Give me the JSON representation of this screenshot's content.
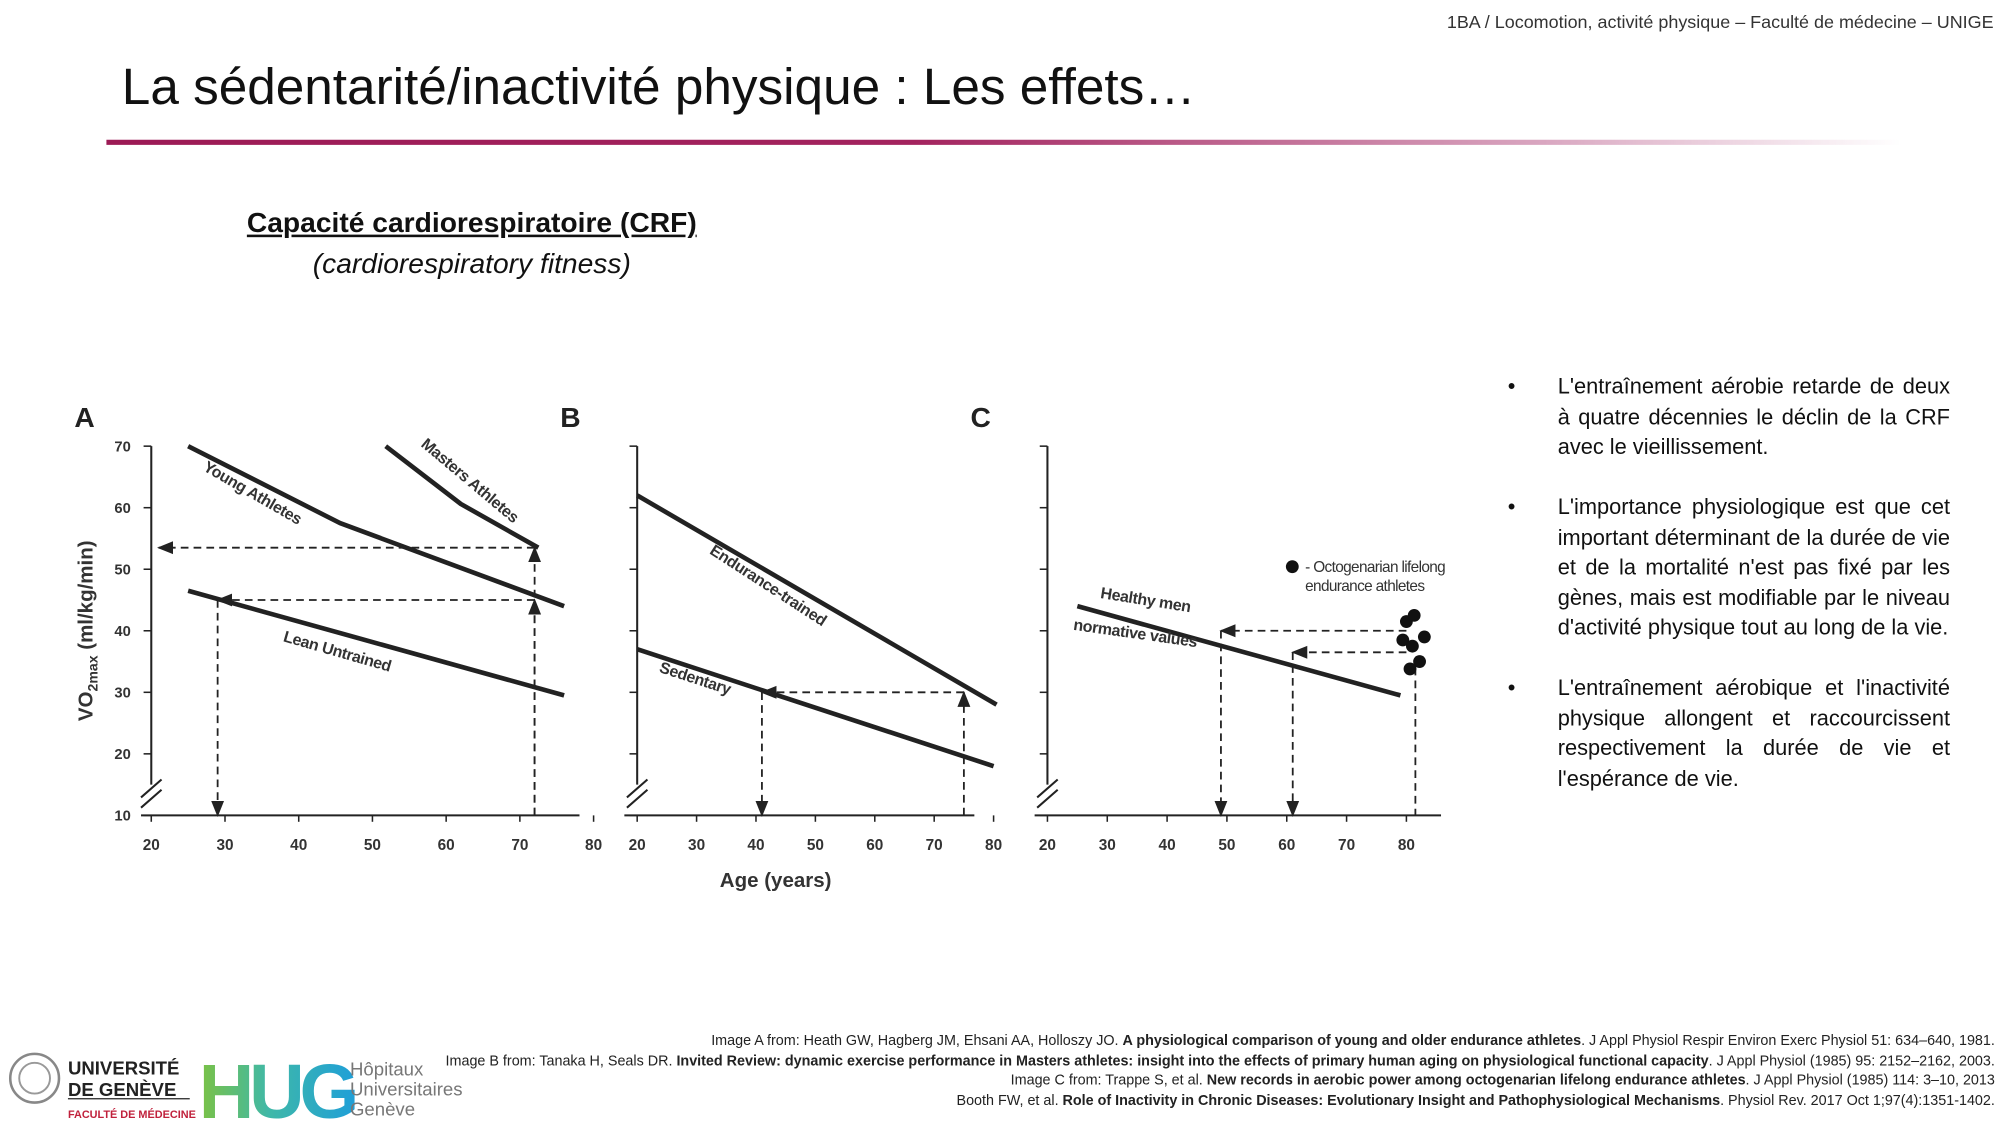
{
  "header": {
    "course": "1BA / Locomotion, activité physique – Faculté de médecine – UNIGE"
  },
  "title": "La sédentarité/inactivité physique : Les effets…",
  "section": {
    "heading": "Capacité cardiorespiratoire (CRF)",
    "subheading": "(cardiorespiratory fitness)"
  },
  "bullets": [
    "L'entraînement aérobie retarde de deux à quatre décennies le déclin de la CRF avec le vieillissement.",
    "L'importance physiologique est que cet important déterminant de la durée de vie et de la mortalité n'est pas fixé par les gènes, mais est modifiable par le niveau d'activité physique tout au long de la vie.",
    "L'entraînement aérobique et l'inactivité physique allongent et raccourcissent respectivement la durée de vie et l'espérance de vie."
  ],
  "references": [
    [
      "Image A from: Heath GW, Hagberg JM, Ehsani AA, Holloszy JO. ",
      "A physiological comparison of young and older endurance athletes",
      ". J Appl Physiol Respir Environ Exerc Physiol 51: 634–640, 1981."
    ],
    [
      "Image B from: Tanaka H, Seals DR. ",
      "Invited Review: dynamic exercise performance in Masters athletes: insight into the effects of primary human aging on physiological functional capacity",
      ". J Appl Physiol (1985) 95: 2152–2162, 2003."
    ],
    [
      "Image C from: Trappe S, et al. ",
      "New records in aerobic power among octogenarian lifelong endurance athletes",
      ". J Appl Physiol (1985) 114: 3–10, 2013"
    ],
    [
      "Booth FW, et al. ",
      "Role of Inactivity in Chronic Diseases: Evolutionary Insight and Pathophysiological Mechanisms",
      ". Physiol Rev. 2017 Oct 1;97(4):1351-1402."
    ]
  ],
  "logos": {
    "unige": [
      "UNIVERSITÉ",
      "DE GENÈVE"
    ],
    "unige_faculty": "FACULTÉ DE MÉDECINE",
    "hug": "HUG",
    "hug_name": [
      "Hôpitaux",
      "Universitaires",
      "Genève"
    ]
  },
  "chart_data": [
    {
      "type": "line",
      "panel": "A",
      "ylabel": [
        "VO",
        "2max",
        " (ml/kg/min)"
      ],
      "xlim": [
        20,
        80
      ],
      "xticks": [
        20,
        30,
        40,
        50,
        60,
        70,
        80
      ],
      "ylim": [
        10,
        70
      ],
      "yticks": [
        10,
        20,
        30,
        40,
        50,
        60,
        70
      ],
      "ytick_labels": true,
      "series": [
        {
          "name": "Young Athletes",
          "color": "#222222",
          "x": [
            25,
            45.6,
            76
          ],
          "values": [
            70,
            57.5,
            44
          ]
        },
        {
          "name": "Masters Athletes",
          "color": "#222222",
          "x": [
            51.8,
            62,
            72.5
          ],
          "values": [
            70,
            60.6,
            53.5
          ]
        },
        {
          "name": "Lean Untrained",
          "color": "#222222",
          "x": [
            25,
            76
          ],
          "values": [
            46.5,
            29.5
          ]
        }
      ],
      "guides": [
        {
          "from": [
            72,
            10
          ],
          "to": [
            72,
            53.5
          ],
          "arrow": true
        },
        {
          "from": [
            72,
            53.5
          ],
          "to": [
            21,
            53.5
          ],
          "arrow": true
        },
        {
          "from": [
            72,
            10
          ],
          "to": [
            72,
            45
          ],
          "arrow": true
        },
        {
          "from": [
            72,
            45
          ],
          "to": [
            29,
            45
          ],
          "arrow": true
        },
        {
          "from": [
            29,
            45
          ],
          "to": [
            29,
            10
          ],
          "arrow": true
        }
      ]
    },
    {
      "type": "line",
      "panel": "B",
      "xlabel": "Age (years)",
      "xlim": [
        20,
        80
      ],
      "xticks": [
        20,
        30,
        40,
        50,
        60,
        70,
        80
      ],
      "ylim": [
        10,
        70
      ],
      "yticks": [
        10,
        20,
        30,
        40,
        50,
        60,
        70
      ],
      "ytick_labels": false,
      "series": [
        {
          "name": "Endurance-trained",
          "color": "#222222",
          "x": [
            20,
            80.5
          ],
          "values": [
            62,
            28
          ]
        },
        {
          "name": "Sedentary",
          "color": "#222222",
          "x": [
            20,
            80
          ],
          "values": [
            37,
            18
          ]
        }
      ],
      "guides": [
        {
          "from": [
            75,
            10
          ],
          "to": [
            75,
            30
          ],
          "arrow": true
        },
        {
          "from": [
            75,
            30
          ],
          "to": [
            41,
            30
          ],
          "arrow": true
        },
        {
          "from": [
            41,
            30
          ],
          "to": [
            41,
            10
          ],
          "arrow": true
        }
      ]
    },
    {
      "type": "line",
      "panel": "C",
      "xlim": [
        20,
        80
      ],
      "xticks": [
        20,
        30,
        40,
        50,
        60,
        70,
        80
      ],
      "ylim": [
        10,
        70
      ],
      "yticks": [
        10,
        20,
        30,
        40,
        50,
        60,
        70
      ],
      "ytick_labels": false,
      "series": [
        {
          "name": [
            "Healthy men",
            "normative values"
          ],
          "color": "#222222",
          "x": [
            25,
            79
          ],
          "values": [
            44,
            29.5
          ]
        },
        {
          "name": [
            "- Octogenarian lifelong",
            "endurance athletes"
          ],
          "color": "#111111",
          "marker": "dot",
          "x": [
            80,
            81.3,
            83,
            79.4,
            81,
            82.2,
            80.6
          ],
          "values": [
            41.5,
            42.5,
            39,
            38.5,
            37.5,
            35,
            33.8
          ]
        }
      ],
      "guides": [
        {
          "from": [
            80,
            40
          ],
          "to": [
            49,
            40
          ],
          "arrow": true
        },
        {
          "from": [
            49,
            40
          ],
          "to": [
            49,
            10
          ],
          "arrow": true
        },
        {
          "from": [
            80,
            36.5
          ],
          "to": [
            61,
            36.5
          ],
          "arrow": true
        },
        {
          "from": [
            61,
            36.5
          ],
          "to": [
            61,
            10
          ],
          "arrow": true
        },
        {
          "from": [
            81.5,
            34
          ],
          "to": [
            81.5,
            10
          ],
          "arrow": false
        }
      ]
    }
  ]
}
